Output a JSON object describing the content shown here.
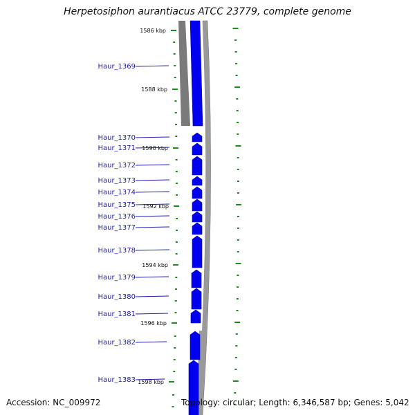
{
  "header": {
    "title": "Herpetosiphon aurantiacus ATCC 23779, complete genome"
  },
  "footer": {
    "accession": "Accession: NC_009972",
    "stats": "Topology: circular; Length: 6,346,587 bp; Genes: 5,042"
  },
  "colors": {
    "gene": "#0000ee",
    "gene_label": "#1a1aa6",
    "tick": "#1e8a1e",
    "backbone": "#888888"
  },
  "scale": {
    "ticks": [
      {
        "label": "1586 kbp"
      },
      {
        "label": "1588 kbp"
      },
      {
        "label": "1590 kbp"
      },
      {
        "label": "1592 kbp"
      },
      {
        "label": "1594 kbp"
      },
      {
        "label": "1596 kbp"
      },
      {
        "label": "1598 kbp"
      }
    ]
  },
  "genes": [
    {
      "label": "Haur_1369"
    },
    {
      "label": "Haur_1370"
    },
    {
      "label": "Haur_1371"
    },
    {
      "label": "Haur_1372"
    },
    {
      "label": "Haur_1373"
    },
    {
      "label": "Haur_1374"
    },
    {
      "label": "Haur_1375"
    },
    {
      "label": "Haur_1376"
    },
    {
      "label": "Haur_1377"
    },
    {
      "label": "Haur_1378"
    },
    {
      "label": "Haur_1379"
    },
    {
      "label": "Haur_1380"
    },
    {
      "label": "Haur_1381"
    },
    {
      "label": "Haur_1382"
    },
    {
      "label": "Haur_1383"
    }
  ]
}
